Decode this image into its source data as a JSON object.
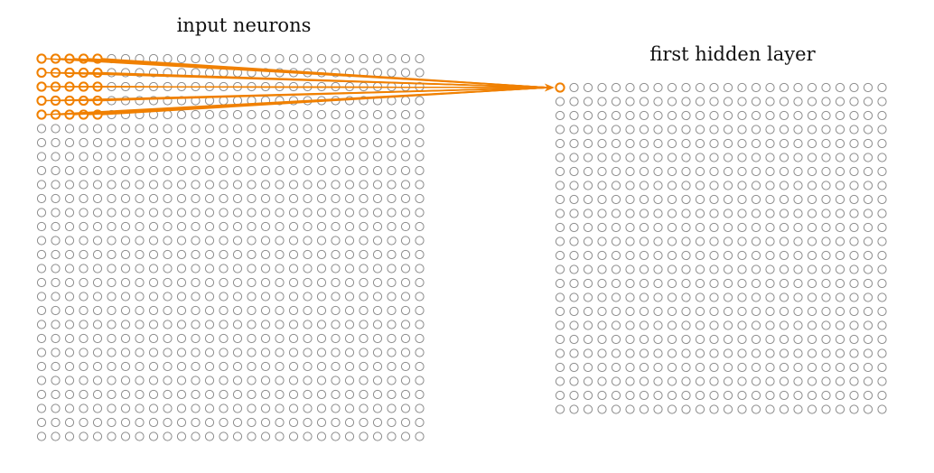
{
  "input_layer": {
    "label": "input neurons",
    "rows": 28,
    "cols": 28
  },
  "hidden_layer": {
    "label": "first hidden layer",
    "rows": 24,
    "cols": 24
  },
  "receptive_field": {
    "rows": 5,
    "cols": 5,
    "target_row": 0,
    "target_col": 0
  },
  "colors": {
    "neuron_outline": "#8c8c8c",
    "highlight": "#f08000",
    "text": "#111111"
  }
}
